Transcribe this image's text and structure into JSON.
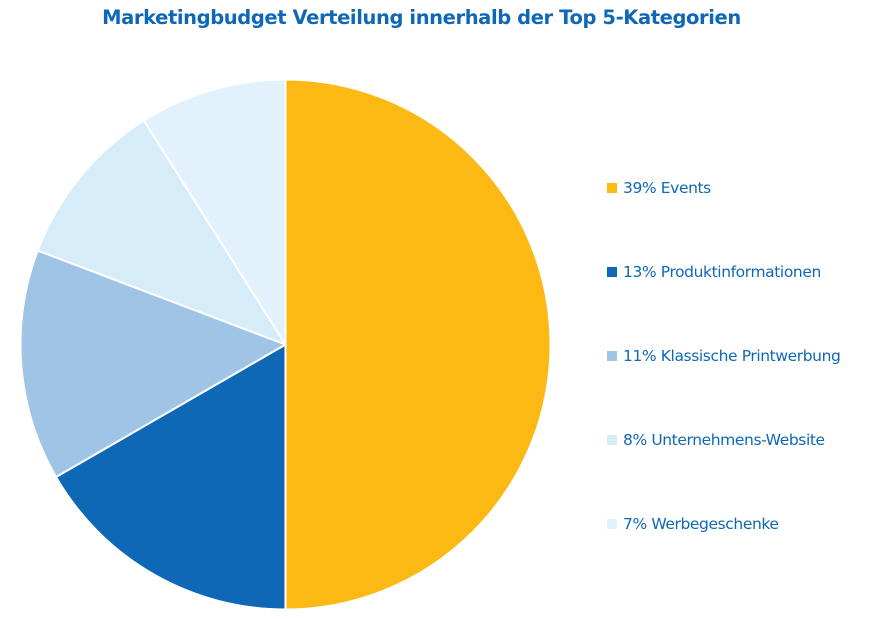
{
  "chart_data": {
    "type": "pie",
    "title": "Marketingbudget Verteilung innerhalb der Top 5-Kategorien",
    "start_angle_deg": 0,
    "direction": "clockwise",
    "legend_position": "right",
    "slices": [
      {
        "label": "Events",
        "value": 39,
        "legend": "39% Events",
        "color": "#FDB913"
      },
      {
        "label": "Produktinformationen",
        "value": 13,
        "legend": "13% Produktinformationen",
        "color": "#0F68B5"
      },
      {
        "label": "Klassische Printwerbung",
        "value": 11,
        "legend": "11% Klassische Printwerbung",
        "color": "#A0C4E6"
      },
      {
        "label": "Unternehmens-Website",
        "value": 8,
        "legend": "8% Unternehmens-Website",
        "color": "#D6ECF9"
      },
      {
        "label": "Werbegeschenke",
        "value": 7,
        "legend": "7% Werbegeschenke",
        "color": "#E2F2FC"
      }
    ]
  },
  "colors": {
    "text": "#0F68B5",
    "slice_border": "#FFFFFF"
  }
}
